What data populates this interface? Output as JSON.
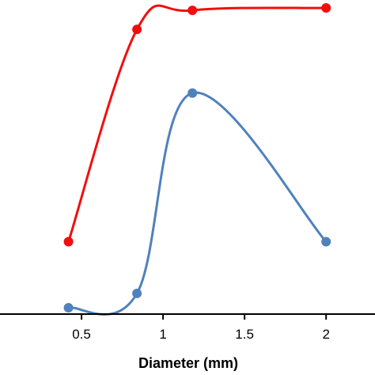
{
  "chart_data": {
    "type": "line",
    "title": "",
    "xlabel": "Diameter (mm)",
    "ylabel": "",
    "xlim": [
      0.0,
      2.3
    ],
    "ylim": [
      -0.05,
      3.9
    ],
    "x_ticks": [
      0.5,
      1,
      1.5,
      2
    ],
    "x_tick_labels": [
      "0.5",
      "1",
      "1.5",
      "2"
    ],
    "grid": false,
    "legend": "none",
    "smooth": true,
    "series": [
      {
        "color": "#f20d0d",
        "x": [
          0.42,
          0.84,
          1.18,
          2.0
        ],
        "y": [
          0.86,
          3.53,
          3.77,
          3.8
        ]
      },
      {
        "color": "#4f81bd",
        "x": [
          0.42,
          0.84,
          1.18,
          2.0
        ],
        "y": [
          0.03,
          0.21,
          2.73,
          0.86
        ]
      }
    ]
  }
}
